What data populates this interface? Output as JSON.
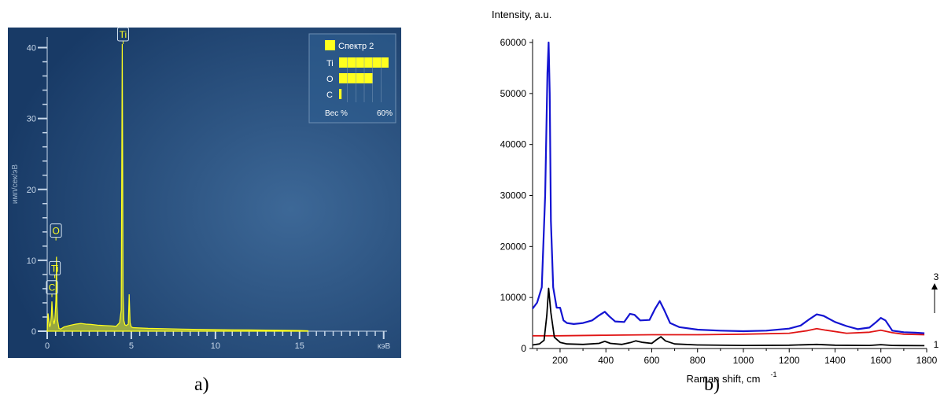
{
  "chart_data": [
    {
      "id": "a",
      "type": "line",
      "panel_label": "a)",
      "ylabel": "имп/сек/эВ",
      "xlabel": "",
      "x_unit": "кэВ",
      "xlim": [
        0,
        20.2
      ],
      "ylim": [
        0,
        41.5
      ],
      "x_ticks": [
        0,
        5,
        10,
        15
      ],
      "y_ticks": [
        0,
        10,
        20,
        30,
        40
      ],
      "grid": false,
      "background": "#1e4470",
      "line_color": "#ffff1e",
      "series": [
        {
          "x": [
            0.0,
            0.05,
            0.1,
            0.15,
            0.2,
            0.25,
            0.28,
            0.32,
            0.35,
            0.4,
            0.45,
            0.5,
            0.52,
            0.55,
            0.58,
            0.62,
            0.7,
            0.8,
            1.0,
            1.3,
            1.7,
            2.0,
            2.3,
            2.6,
            3.0,
            3.4,
            3.8,
            4.1,
            4.3,
            4.4,
            4.46,
            4.51,
            4.56,
            4.62,
            4.7,
            4.82,
            4.87,
            4.93,
            5.0,
            5.1,
            5.5,
            6.0,
            7.0,
            8.0,
            9.0,
            10.0,
            11.0,
            12.0,
            13.0,
            14.0,
            15.0,
            15.5
          ],
          "y": [
            0.0,
            2.5,
            1.5,
            0.6,
            1.0,
            2.3,
            4.2,
            2.5,
            1.8,
            1.0,
            1.5,
            3.5,
            4.5,
            10.5,
            3.5,
            1.5,
            0.4,
            0.3,
            0.6,
            0.8,
            1.0,
            1.1,
            1.0,
            0.95,
            0.85,
            0.8,
            0.75,
            0.7,
            1.2,
            3.0,
            40.5,
            5.0,
            1.5,
            0.9,
            0.8,
            1.0,
            5.2,
            1.2,
            0.6,
            0.5,
            0.45,
            0.4,
            0.35,
            0.3,
            0.25,
            0.22,
            0.2,
            0.18,
            0.15,
            0.12,
            0.1,
            0.05
          ]
        }
      ],
      "peak_labels": [
        {
          "text": "Ti",
          "x": 4.51,
          "y": 40.5
        },
        {
          "text": "O",
          "x": 0.52,
          "y": 12.8
        },
        {
          "text": "Ti",
          "x": 0.45,
          "y": 7.5
        },
        {
          "text": "C",
          "x": 0.28,
          "y": 4.8
        }
      ],
      "legend": {
        "title": "Спектр 2",
        "items": [
          {
            "label": "Ti",
            "value": 59
          },
          {
            "label": "O",
            "value": 40
          },
          {
            "label": "C",
            "value": 3
          }
        ],
        "axis_label": "Вес %",
        "axis_max_label": "60%",
        "axis_max": 60
      }
    },
    {
      "id": "b",
      "type": "line",
      "panel_label": "b)",
      "ylabel": "Intensity, a.u.",
      "xlabel": "Raman shift, cm",
      "xlabel_sup": "-1",
      "xlim": [
        80,
        1800
      ],
      "ylim": [
        0,
        60000
      ],
      "x_ticks": [
        200,
        400,
        600,
        800,
        1000,
        1200,
        1400,
        1600,
        1800
      ],
      "y_ticks": [
        0,
        10000,
        20000,
        30000,
        40000,
        50000,
        60000
      ],
      "grid": false,
      "side_labels": {
        "top": "3",
        "bottom": "1"
      },
      "series": [
        {
          "color": "#1414d2",
          "x": [
            80,
            100,
            120,
            135,
            145,
            150,
            155,
            160,
            170,
            185,
            200,
            215,
            230,
            260,
            300,
            340,
            370,
            395,
            415,
            440,
            480,
            505,
            525,
            550,
            590,
            615,
            635,
            655,
            680,
            720,
            800,
            900,
            1000,
            1100,
            1200,
            1250,
            1290,
            1320,
            1350,
            1400,
            1450,
            1500,
            1550,
            1580,
            1600,
            1620,
            1650,
            1700,
            1750,
            1790
          ],
          "y": [
            7800,
            9000,
            12000,
            30000,
            54000,
            60000,
            50000,
            25000,
            12000,
            8000,
            8000,
            5500,
            5000,
            4800,
            5000,
            5500,
            6500,
            7200,
            6300,
            5300,
            5200,
            6800,
            6600,
            5500,
            5600,
            7800,
            9300,
            7500,
            5000,
            4200,
            3700,
            3500,
            3400,
            3500,
            3900,
            4500,
            5800,
            6700,
            6400,
            5200,
            4400,
            3800,
            4100,
            5200,
            6000,
            5500,
            3500,
            3200,
            3100,
            3000
          ]
        },
        {
          "color": "#e01414",
          "x": [
            80,
            200,
            400,
            600,
            800,
            1000,
            1200,
            1280,
            1320,
            1360,
            1450,
            1550,
            1600,
            1650,
            1700,
            1790
          ],
          "y": [
            2500,
            2500,
            2600,
            2700,
            2700,
            2800,
            3000,
            3500,
            3900,
            3600,
            3000,
            3200,
            3600,
            3100,
            2800,
            2700
          ]
        },
        {
          "color": "#000000",
          "x": [
            80,
            110,
            130,
            142,
            150,
            160,
            175,
            200,
            230,
            300,
            370,
            395,
            420,
            470,
            510,
            530,
            560,
            600,
            620,
            640,
            660,
            700,
            800,
            1000,
            1200,
            1320,
            1400,
            1550,
            1600,
            1650,
            1790
          ],
          "y": [
            700,
            900,
            1600,
            6500,
            11800,
            7000,
            2200,
            1200,
            900,
            800,
            1000,
            1400,
            1000,
            800,
            1200,
            1500,
            1200,
            1000,
            1700,
            2300,
            1500,
            900,
            700,
            600,
            650,
            800,
            650,
            600,
            750,
            600,
            550
          ]
        }
      ]
    }
  ]
}
